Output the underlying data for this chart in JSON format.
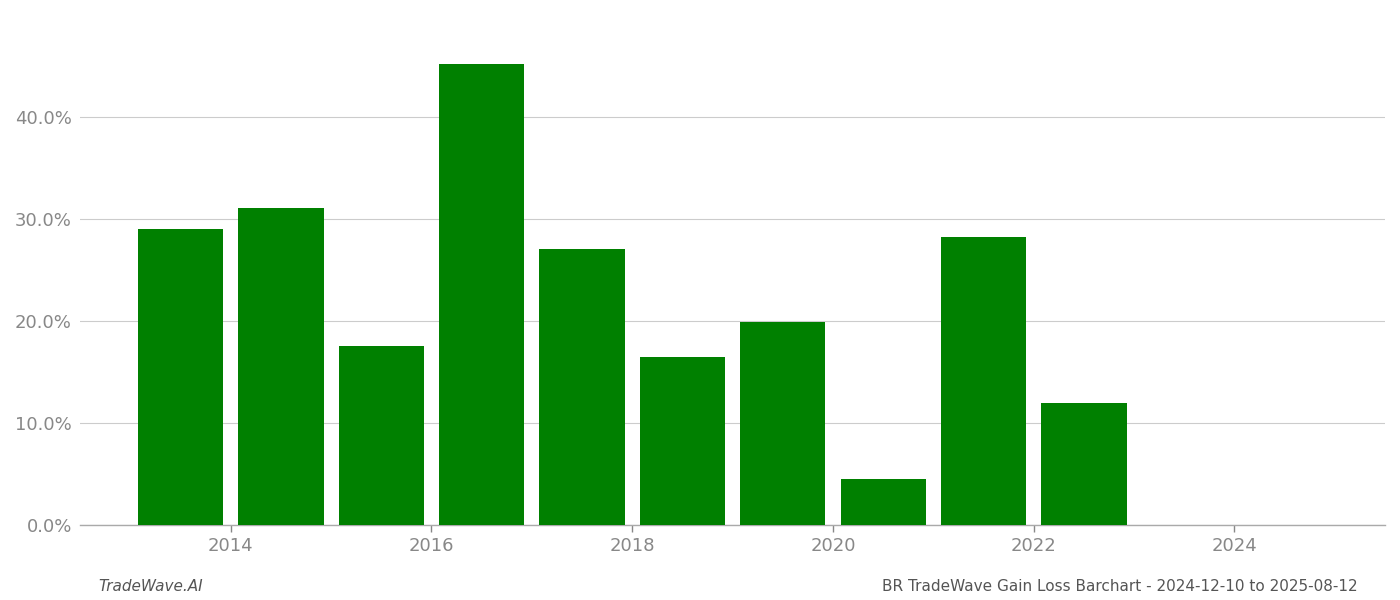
{
  "bar_centers": [
    2013.5,
    2014.5,
    2015.5,
    2016.5,
    2017.5,
    2018.5,
    2019.5,
    2020.5,
    2021.5,
    2022.5,
    2023.5
  ],
  "values": [
    0.29,
    0.311,
    0.176,
    0.452,
    0.271,
    0.165,
    0.199,
    0.045,
    0.282,
    0.12,
    0.0
  ],
  "bar_color": "#008000",
  "background_color": "#ffffff",
  "grid_color": "#cccccc",
  "axis_color": "#aaaaaa",
  "tick_color": "#888888",
  "xlim": [
    2012.5,
    2025.5
  ],
  "ylim": [
    0.0,
    0.5
  ],
  "yticks": [
    0.0,
    0.1,
    0.2,
    0.3,
    0.4
  ],
  "xtick_positions": [
    2014,
    2016,
    2018,
    2020,
    2022,
    2024
  ],
  "xtick_labels": [
    "2014",
    "2016",
    "2018",
    "2020",
    "2022",
    "2024"
  ],
  "footer_left": "TradeWave.AI",
  "footer_right": "BR TradeWave Gain Loss Barchart - 2024-12-10 to 2025-08-12",
  "bar_width": 0.85,
  "figsize": [
    14.0,
    6.0
  ],
  "dpi": 100,
  "footer_fontsize": 11,
  "tick_fontsize": 13
}
